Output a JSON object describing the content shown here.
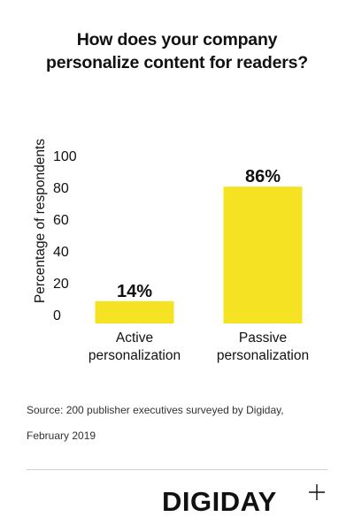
{
  "chart_data": {
    "type": "bar",
    "title_lines": [
      "How does your company",
      "personalize content for readers?"
    ],
    "categories": [
      [
        "Active",
        "personalization"
      ],
      [
        "Passive",
        "personalization"
      ]
    ],
    "values": [
      14,
      86
    ],
    "data_labels": [
      "14%",
      "86%"
    ],
    "ylabel": "Percentage of respondents",
    "xlabel": "",
    "ylim": [
      0,
      100
    ],
    "yticks": [
      0,
      20,
      40,
      60,
      80,
      100
    ],
    "grid": false,
    "bar_color": "#f5e323"
  },
  "source_lines": [
    "Source: 200 publisher executives surveyed by Digiday,",
    "February 2019"
  ],
  "brand": {
    "logo_text": "DIGIDAY",
    "logo_mark": "plus-icon",
    "color": "#111111"
  }
}
